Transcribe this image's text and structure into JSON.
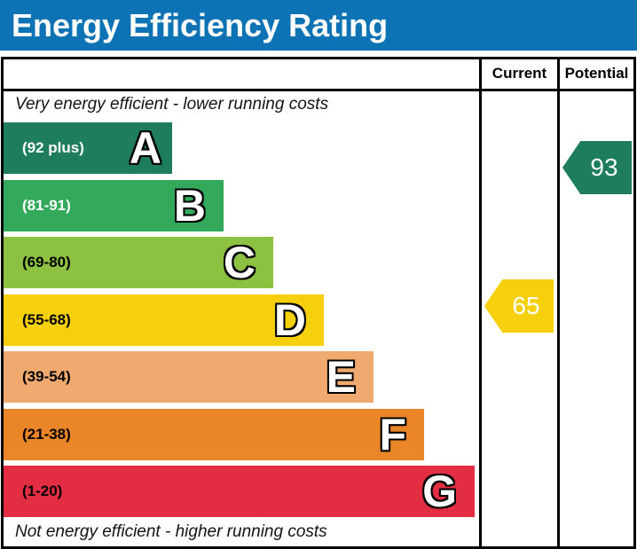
{
  "header": {
    "title": "Energy Efficiency Rating",
    "bg_color": "#0d73b5"
  },
  "columns": {
    "current_label": "Current",
    "potential_label": "Potential"
  },
  "captions": {
    "top": "Very energy efficient - lower running costs",
    "bottom": "Not energy efficient - higher running costs"
  },
  "current": {
    "value": "65",
    "band": "D",
    "color": "#f6d00d"
  },
  "potential": {
    "value": "93",
    "band": "A",
    "color": "#1e7d5a"
  },
  "chart_data": {
    "type": "bar",
    "orientation": "horizontal",
    "title": "Energy Efficiency Rating",
    "categories": [
      "A",
      "B",
      "C",
      "D",
      "E",
      "F",
      "G"
    ],
    "band_ranges": [
      "(92 plus)",
      "(81-91)",
      "(69-80)",
      "(55-68)",
      "(39-54)",
      "(21-38)",
      "(1-20)"
    ],
    "values": [
      190,
      248,
      304,
      361,
      417,
      474,
      531
    ],
    "value_unit": "bar-length-px",
    "colors": [
      "#1e7d5a",
      "#33a95c",
      "#8dc142",
      "#f6d00d",
      "#f0a96e",
      "#ea8627",
      "#e32d42"
    ],
    "label_colors": [
      "#ffffff",
      "#ffffff",
      "#000000",
      "#000000",
      "#000000",
      "#000000",
      "#000000"
    ],
    "annotations": [
      {
        "name": "current",
        "label": "Current",
        "value": 65,
        "band": "D",
        "color": "#f6d00d"
      },
      {
        "name": "potential",
        "label": "Potential",
        "value": 93,
        "band": "A",
        "color": "#1e7d5a"
      }
    ],
    "top_caption": "Very energy efficient - lower running costs",
    "bottom_caption": "Not energy efficient - higher running costs",
    "grid": false,
    "legend_position": "none"
  }
}
